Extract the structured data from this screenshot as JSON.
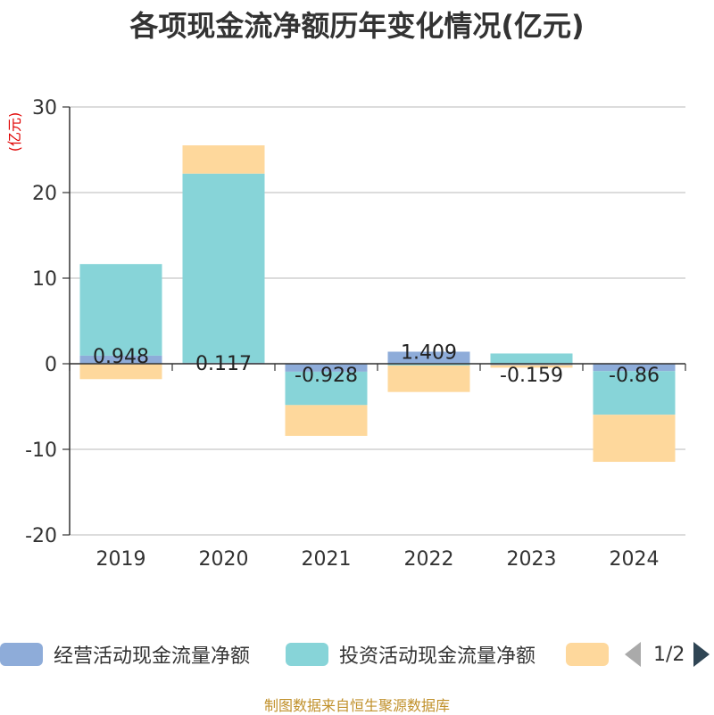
{
  "title": "各项现金流净额历年变化情况(亿元)",
  "footer": "制图数据来自恒生聚源数据库",
  "legend": {
    "items": [
      {
        "label": "经营活动现金流量净额",
        "color": "#8eacd9"
      },
      {
        "label": "投资活动现金流量净额",
        "color": "#87d4d8"
      },
      {
        "label": "",
        "color": "#fed89c"
      }
    ],
    "page": "1/2"
  },
  "chart_data": {
    "type": "bar",
    "stacked": true,
    "title": "各项现金流净额历年变化情况(亿元)",
    "ylabel": "(亿元)",
    "ylabel_color": "#e00000",
    "categories": [
      "2019",
      "2020",
      "2021",
      "2022",
      "2023",
      "2024"
    ],
    "ylim": [
      -20,
      30
    ],
    "yticks": [
      30,
      20,
      10,
      0,
      -10,
      -20
    ],
    "grid": true,
    "legend_position": "bottom",
    "series": [
      {
        "name": "经营活动现金流量净额",
        "color": "#8eacd9",
        "values": [
          0.948,
          0.117,
          -0.928,
          1.409,
          -0.159,
          -0.86
        ]
      },
      {
        "name": "投资活动现金流量净额",
        "color": "#87d4d8",
        "values": [
          10.7,
          22.1,
          -3.9,
          -0.2,
          1.2,
          -5.1
        ]
      },
      {
        "name": "",
        "color": "#fed89c",
        "values": [
          -1.8,
          3.3,
          -3.6,
          -3.1,
          -0.3,
          -5.5
        ]
      }
    ],
    "data_labels": [
      "0.948",
      "0.117",
      "-0.928",
      "1.409",
      "-0.159",
      "-0.86"
    ]
  }
}
